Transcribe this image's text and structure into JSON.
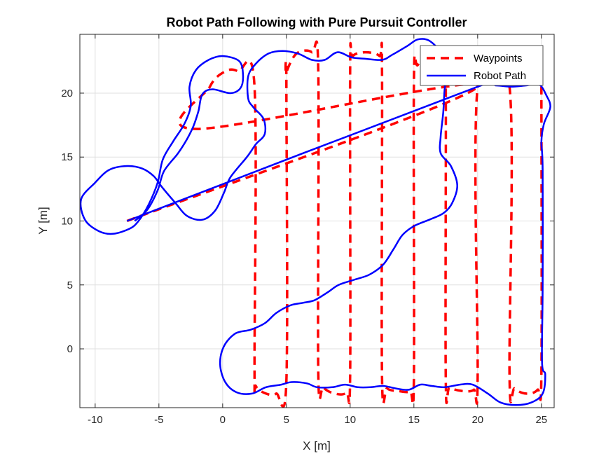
{
  "chart_data": {
    "type": "line",
    "title": "Robot Path Following with Pure Pursuit Controller",
    "xlabel": "X [m]",
    "ylabel": "Y [m]",
    "xlim": [
      -11.2,
      26
    ],
    "ylim": [
      -4.6,
      24.6
    ],
    "xticks": [
      -10,
      -5,
      0,
      5,
      10,
      15,
      20,
      25
    ],
    "yticks": [
      0,
      5,
      10,
      15,
      20
    ],
    "xtick_labels": [
      "-10",
      "-5",
      "0",
      "5",
      "10",
      "15",
      "20",
      "25"
    ],
    "ytick_labels": [
      "0",
      "5",
      "10",
      "15",
      "20"
    ],
    "grid": true,
    "legend_position": "top-right",
    "series": [
      {
        "name": "Waypoints",
        "color": "#ff0000",
        "style": "dashed",
        "points": [
          [
            -7.5,
            10.0
          ],
          [
            20.0,
            20.5
          ],
          [
            -2.0,
            17.2
          ],
          [
            -1.0,
            20.5
          ],
          [
            0.2,
            21.7
          ],
          [
            1.2,
            21.7
          ],
          [
            2.5,
            20.5
          ],
          [
            2.5,
            -1.5
          ],
          [
            2.6,
            -2.9
          ],
          [
            3.4,
            -3.5
          ],
          [
            4.2,
            -3.5
          ],
          [
            5.0,
            -2.5
          ],
          [
            5.0,
            20.5
          ],
          [
            5.0,
            21.6
          ],
          [
            5.8,
            23.1
          ],
          [
            7.0,
            23.2
          ],
          [
            7.5,
            21.8
          ],
          [
            7.5,
            -1.8
          ],
          [
            7.9,
            -3.0
          ],
          [
            8.8,
            -3.5
          ],
          [
            9.7,
            -3.4
          ],
          [
            10.0,
            -2.0
          ],
          [
            10.0,
            21.8
          ],
          [
            10.2,
            22.9
          ],
          [
            11.2,
            23.2
          ],
          [
            12.3,
            22.9
          ],
          [
            12.5,
            21.8
          ],
          [
            12.5,
            -2.2
          ],
          [
            12.9,
            -3.1
          ],
          [
            13.8,
            -3.3
          ],
          [
            14.7,
            -3.3
          ],
          [
            15.0,
            -2.3
          ],
          [
            15.0,
            20.8
          ],
          [
            15.3,
            22.2
          ],
          [
            16.4,
            22.9
          ],
          [
            17.3,
            22.5
          ],
          [
            17.5,
            21.0
          ],
          [
            17.5,
            -2.3
          ],
          [
            17.8,
            -3.0
          ],
          [
            18.8,
            -3.3
          ],
          [
            19.7,
            -3.2
          ],
          [
            20.0,
            -2.3
          ],
          [
            20.0,
            20.5
          ],
          [
            22.5,
            20.5
          ],
          [
            22.5,
            -2.2
          ],
          [
            22.9,
            -3.1
          ],
          [
            23.8,
            -3.5
          ],
          [
            24.7,
            -3.2
          ],
          [
            25.0,
            -1.9
          ],
          [
            25.0,
            20.5
          ]
        ]
      },
      {
        "name": "Robot Path",
        "color": "#0000ff",
        "style": "solid",
        "points": [
          [
            -7.5,
            10.0
          ],
          [
            20.0,
            20.5
          ],
          [
            21.4,
            20.6
          ],
          [
            22.6,
            20.5
          ],
          [
            23.8,
            20.6
          ],
          [
            24.8,
            20.7
          ],
          [
            25.4,
            19.8
          ],
          [
            25.7,
            18.9
          ],
          [
            25.2,
            17.6
          ],
          [
            25.0,
            16.2
          ],
          [
            25.1,
            14.0
          ],
          [
            25.1,
            5.0
          ],
          [
            25.05,
            -1.0
          ],
          [
            25.3,
            -2.0
          ],
          [
            25.1,
            -3.5
          ],
          [
            24.2,
            -4.2
          ],
          [
            23.0,
            -4.4
          ],
          [
            21.8,
            -4.2
          ],
          [
            20.8,
            -3.5
          ],
          [
            19.6,
            -2.8
          ],
          [
            18.6,
            -2.8
          ],
          [
            17.4,
            -3.0
          ],
          [
            16.4,
            -2.9
          ],
          [
            15.5,
            -2.8
          ],
          [
            14.6,
            -3.2
          ],
          [
            13.6,
            -3.1
          ],
          [
            12.6,
            -2.9
          ],
          [
            11.6,
            -3.0
          ],
          [
            10.6,
            -3.0
          ],
          [
            9.6,
            -2.8
          ],
          [
            8.6,
            -3.0
          ],
          [
            7.4,
            -3.0
          ],
          [
            6.6,
            -2.7
          ],
          [
            5.4,
            -2.6
          ],
          [
            4.6,
            -2.8
          ],
          [
            3.4,
            -3.0
          ],
          [
            2.3,
            -3.5
          ],
          [
            1.1,
            -3.4
          ],
          [
            0.2,
            -2.6
          ],
          [
            -0.2,
            -1.2
          ],
          [
            0.1,
            0.2
          ],
          [
            1.0,
            1.2
          ],
          [
            2.2,
            1.5
          ],
          [
            3.3,
            2.0
          ],
          [
            4.2,
            2.8
          ],
          [
            5.3,
            3.4
          ],
          [
            6.3,
            3.6
          ],
          [
            7.2,
            3.8
          ],
          [
            8.2,
            4.4
          ],
          [
            9.1,
            5.0
          ],
          [
            10.3,
            5.4
          ],
          [
            11.5,
            5.8
          ],
          [
            12.6,
            6.6
          ],
          [
            13.4,
            7.8
          ],
          [
            14.1,
            8.9
          ],
          [
            15.0,
            9.6
          ],
          [
            16.2,
            10.1
          ],
          [
            17.3,
            10.6
          ],
          [
            18.0,
            11.4
          ],
          [
            18.4,
            12.8
          ],
          [
            17.9,
            14.3
          ],
          [
            17.1,
            15.3
          ],
          [
            17.1,
            16.6
          ],
          [
            17.3,
            18.5
          ],
          [
            17.4,
            20.2
          ],
          [
            17.6,
            22.0
          ],
          [
            17.2,
            23.1
          ],
          [
            16.2,
            24.1
          ],
          [
            15.3,
            24.2
          ],
          [
            14.5,
            23.7
          ],
          [
            13.3,
            23.0
          ],
          [
            12.5,
            22.6
          ],
          [
            11.1,
            22.7
          ],
          [
            10.1,
            22.8
          ],
          [
            9.0,
            23.2
          ],
          [
            8.0,
            22.6
          ],
          [
            7.0,
            22.6
          ],
          [
            5.9,
            23.1
          ],
          [
            4.7,
            23.3
          ],
          [
            3.6,
            23.1
          ],
          [
            2.6,
            22.3
          ],
          [
            2.0,
            21.3
          ],
          [
            2.0,
            19.6
          ],
          [
            2.4,
            18.9
          ],
          [
            3.2,
            18.0
          ],
          [
            3.3,
            16.8
          ],
          [
            2.6,
            16.0
          ],
          [
            1.9,
            15.0
          ],
          [
            0.6,
            13.4
          ],
          [
            0.1,
            12.2
          ],
          [
            -0.6,
            10.8
          ],
          [
            -1.6,
            10.1
          ],
          [
            -2.8,
            10.4
          ],
          [
            -3.7,
            11.4
          ],
          [
            -4.8,
            12.7
          ],
          [
            -5.4,
            13.5
          ],
          [
            -6.3,
            14.1
          ],
          [
            -7.5,
            14.3
          ],
          [
            -8.9,
            14.0
          ],
          [
            -10.0,
            13.0
          ],
          [
            -11.1,
            11.7
          ],
          [
            -10.8,
            10.1
          ],
          [
            -9.7,
            9.2
          ],
          [
            -8.6,
            9.0
          ],
          [
            -7.3,
            9.4
          ],
          [
            -6.6,
            10.0
          ],
          [
            -5.8,
            11.3
          ],
          [
            -5.1,
            13.0
          ],
          [
            -4.7,
            14.8
          ],
          [
            -3.9,
            16.2
          ],
          [
            -3.0,
            17.6
          ],
          [
            -2.5,
            19.0
          ],
          [
            -2.6,
            20.5
          ],
          [
            -2.1,
            21.8
          ],
          [
            -1.1,
            22.6
          ],
          [
            0.0,
            22.9
          ],
          [
            1.3,
            22.5
          ],
          [
            1.6,
            21.4
          ],
          [
            1.4,
            20.4
          ],
          [
            0.6,
            20.0
          ],
          [
            -0.8,
            20.3
          ],
          [
            -1.6,
            19.9
          ],
          [
            -1.9,
            18.6
          ],
          [
            -2.3,
            17.4
          ],
          [
            -2.8,
            16.4
          ],
          [
            -3.5,
            15.3
          ],
          [
            -4.6,
            13.9
          ],
          [
            -5.1,
            12.4
          ],
          [
            -5.9,
            10.9
          ],
          [
            -6.9,
            10.0
          ]
        ]
      }
    ]
  }
}
